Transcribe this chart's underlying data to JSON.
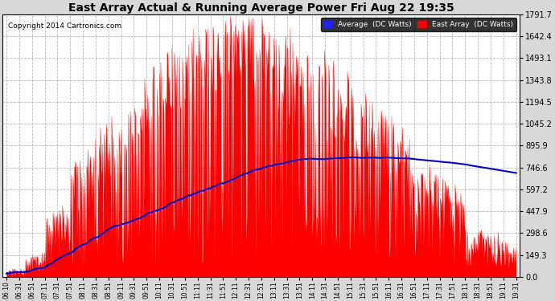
{
  "title": "East Array Actual & Running Average Power Fri Aug 22 19:35",
  "copyright": "Copyright 2014 Cartronics.com",
  "background_color": "#d8d8d8",
  "plot_bg_color": "#ffffff",
  "fill_color": "#ff0000",
  "avg_line_color": "#0000cc",
  "grid_color": "#b0b0b0",
  "yticks": [
    0.0,
    149.3,
    298.6,
    447.9,
    597.2,
    746.6,
    895.9,
    1045.2,
    1194.5,
    1343.8,
    1493.1,
    1642.4,
    1791.7
  ],
  "ymax": 1791.7,
  "legend_avg_label": "Average  (DC Watts)",
  "legend_east_label": "East Array  (DC Watts)",
  "xtick_labels": [
    "06:10",
    "06:31",
    "06:51",
    "07:11",
    "07:31",
    "07:51",
    "08:11",
    "08:31",
    "08:51",
    "09:11",
    "09:31",
    "09:51",
    "10:11",
    "10:31",
    "10:51",
    "11:11",
    "11:31",
    "11:51",
    "12:11",
    "12:31",
    "12:51",
    "13:11",
    "13:31",
    "13:51",
    "14:11",
    "14:31",
    "14:51",
    "15:11",
    "15:31",
    "15:51",
    "16:11",
    "16:31",
    "16:51",
    "17:11",
    "17:31",
    "17:51",
    "18:11",
    "18:31",
    "18:51",
    "19:11",
    "19:31"
  ],
  "n_xticks": 41,
  "n_dense": 820
}
